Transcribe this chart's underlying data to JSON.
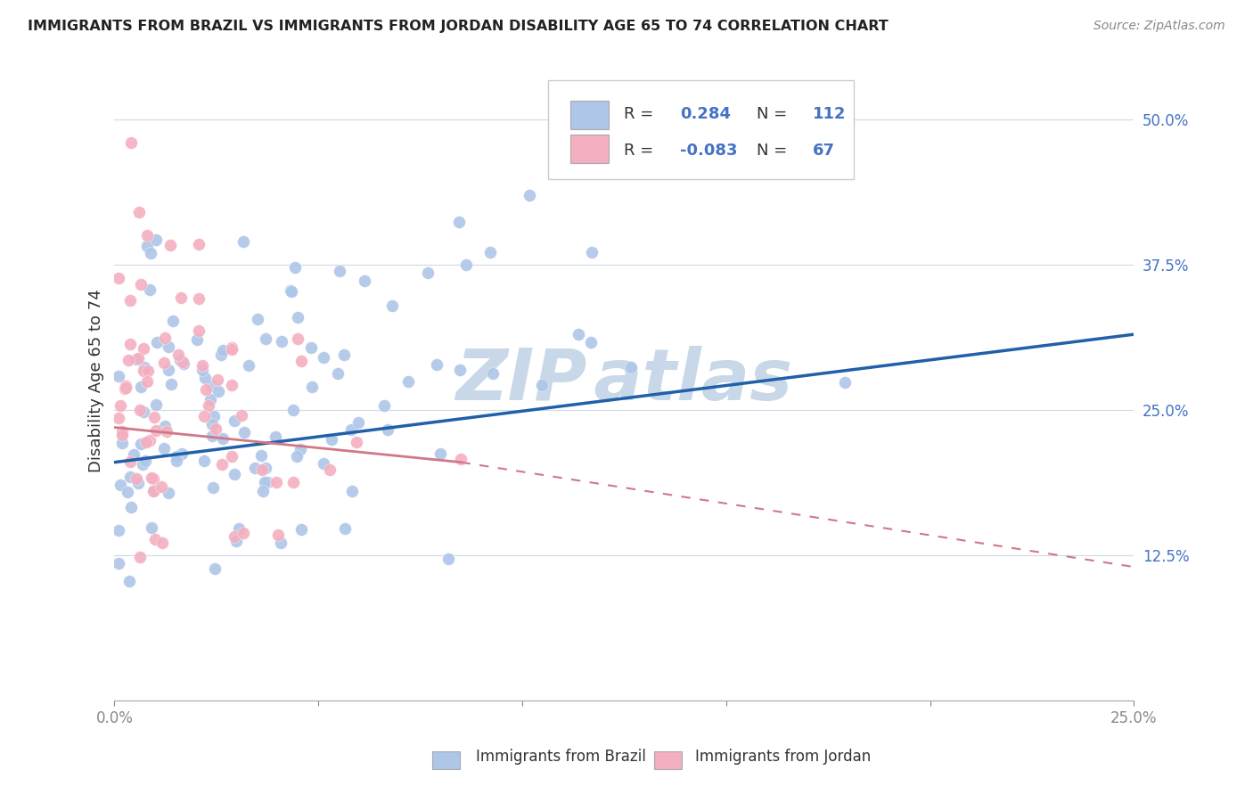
{
  "title": "IMMIGRANTS FROM BRAZIL VS IMMIGRANTS FROM JORDAN DISABILITY AGE 65 TO 74 CORRELATION CHART",
  "source": "Source: ZipAtlas.com",
  "ylabel": "Disability Age 65 to 74",
  "xlim": [
    0.0,
    0.25
  ],
  "ylim": [
    0.0,
    0.55
  ],
  "xticks": [
    0.0,
    0.05,
    0.1,
    0.15,
    0.2,
    0.25
  ],
  "xticklabels": [
    "0.0%",
    "",
    "",
    "",
    "",
    "25.0%"
  ],
  "yticks": [
    0.0,
    0.125,
    0.25,
    0.375,
    0.5
  ],
  "yticklabels": [
    "",
    "12.5%",
    "25.0%",
    "37.5%",
    "50.0%"
  ],
  "brazil_R": 0.284,
  "brazil_N": 112,
  "jordan_R": -0.083,
  "jordan_N": 67,
  "brazil_color": "#aec6e8",
  "jordan_color": "#f4afc0",
  "brazil_line_color": "#2060a8",
  "jordan_line_color": "#d07888",
  "brazil_line": [
    0.0,
    0.25,
    0.205,
    0.315
  ],
  "jordan_line_solid": [
    0.0,
    0.085,
    0.235,
    0.205
  ],
  "jordan_line_dash": [
    0.085,
    0.25,
    0.205,
    0.115
  ],
  "watermark": "ZIPatlas",
  "watermark_color": "#c8d8e8",
  "legend_R1": "R =",
  "legend_V1": "0.284",
  "legend_N1": "N =",
  "legend_NV1": "112",
  "legend_R2": "R =",
  "legend_V2": "-0.083",
  "legend_N2": "N =",
  "legend_NV2": "67",
  "legend_text_color": "#4472c4",
  "legend_label_color": "#333333",
  "bottom_label1": "Immigrants from Brazil",
  "bottom_label2": "Immigrants from Jordan"
}
